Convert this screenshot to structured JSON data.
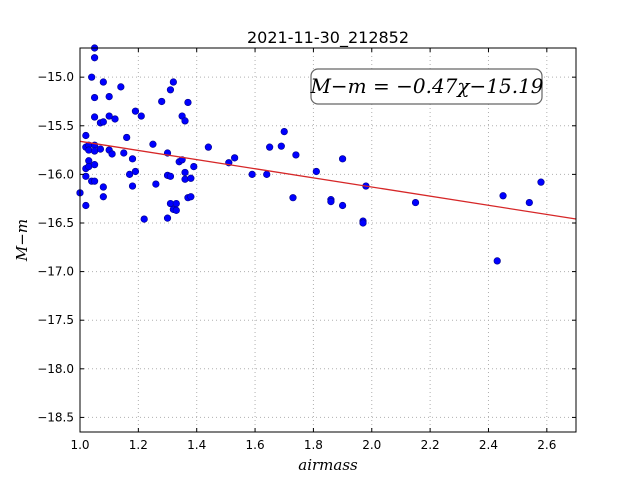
{
  "chart_data": {
    "type": "scatter",
    "title": "2021-11-30_212852",
    "xlabel": "airmass",
    "ylabel": "M−m",
    "xlim": [
      1.0,
      2.7
    ],
    "ylim": [
      -14.7,
      -18.65
    ],
    "y_inverted": true,
    "x_ticks": [
      1.0,
      1.2,
      1.4,
      1.6,
      1.8,
      2.0,
      2.2,
      2.4,
      2.6
    ],
    "x_tick_labels": [
      "1.0",
      "1.2",
      "1.4",
      "1.6",
      "1.8",
      "2.0",
      "2.2",
      "2.4",
      "2.6"
    ],
    "y_ticks": [
      -15.0,
      -15.5,
      -16.0,
      -16.5,
      -17.0,
      -17.5,
      -18.0,
      -18.5
    ],
    "y_tick_labels": [
      "−15.0",
      "−15.5",
      "−16.0",
      "−16.5",
      "−17.0",
      "−17.5",
      "−18.0",
      "−18.5"
    ],
    "grid": true,
    "annotation": "M−m = −0.47χ−15.19",
    "fit_line": {
      "slope": -0.47,
      "intercept": -15.19,
      "color": "#d62728"
    },
    "point_color": "#0000ff",
    "points": [
      [
        1.0,
        -16.19
      ],
      [
        1.02,
        -16.32
      ],
      [
        1.02,
        -15.6
      ],
      [
        1.02,
        -15.72
      ],
      [
        1.02,
        -15.94
      ],
      [
        1.02,
        -16.02
      ],
      [
        1.03,
        -15.7
      ],
      [
        1.03,
        -15.75
      ],
      [
        1.03,
        -15.86
      ],
      [
        1.03,
        -15.92
      ],
      [
        1.04,
        -16.07
      ],
      [
        1.04,
        -15.0
      ],
      [
        1.05,
        -15.21
      ],
      [
        1.05,
        -15.41
      ],
      [
        1.05,
        -15.7
      ],
      [
        1.05,
        -15.76
      ],
      [
        1.05,
        -16.07
      ],
      [
        1.05,
        -14.8
      ],
      [
        1.05,
        -14.7
      ],
      [
        1.05,
        -15.9
      ],
      [
        1.07,
        -15.74
      ],
      [
        1.07,
        -15.47
      ],
      [
        1.08,
        -15.05
      ],
      [
        1.08,
        -15.46
      ],
      [
        1.08,
        -16.23
      ],
      [
        1.08,
        -16.13
      ],
      [
        1.1,
        -15.2
      ],
      [
        1.1,
        -15.4
      ],
      [
        1.1,
        -15.75
      ],
      [
        1.11,
        -15.79
      ],
      [
        1.12,
        -15.43
      ],
      [
        1.14,
        -15.1
      ],
      [
        1.15,
        -15.78
      ],
      [
        1.16,
        -15.62
      ],
      [
        1.17,
        -16.0
      ],
      [
        1.18,
        -15.84
      ],
      [
        1.18,
        -16.12
      ],
      [
        1.19,
        -15.35
      ],
      [
        1.19,
        -15.97
      ],
      [
        1.21,
        -15.4
      ],
      [
        1.22,
        -16.46
      ],
      [
        1.25,
        -15.69
      ],
      [
        1.26,
        -16.1
      ],
      [
        1.28,
        -15.25
      ],
      [
        1.3,
        -15.78
      ],
      [
        1.3,
        -16.01
      ],
      [
        1.3,
        -16.45
      ],
      [
        1.31,
        -16.3
      ],
      [
        1.31,
        -16.02
      ],
      [
        1.31,
        -15.13
      ],
      [
        1.32,
        -15.05
      ],
      [
        1.32,
        -16.36
      ],
      [
        1.33,
        -16.37
      ],
      [
        1.33,
        -16.3
      ],
      [
        1.34,
        -15.87
      ],
      [
        1.35,
        -15.85
      ],
      [
        1.35,
        -15.4
      ],
      [
        1.36,
        -15.45
      ],
      [
        1.36,
        -15.98
      ],
      [
        1.36,
        -16.05
      ],
      [
        1.37,
        -16.24
      ],
      [
        1.37,
        -15.26
      ],
      [
        1.38,
        -16.04
      ],
      [
        1.38,
        -16.23
      ],
      [
        1.39,
        -15.92
      ],
      [
        1.44,
        -15.72
      ],
      [
        1.51,
        -15.88
      ],
      [
        1.53,
        -15.83
      ],
      [
        1.59,
        -16.0
      ],
      [
        1.64,
        -16.0
      ],
      [
        1.65,
        -15.72
      ],
      [
        1.69,
        -15.71
      ],
      [
        1.7,
        -15.56
      ],
      [
        1.73,
        -16.24
      ],
      [
        1.74,
        -15.8
      ],
      [
        1.81,
        -15.97
      ],
      [
        1.86,
        -16.26
      ],
      [
        1.86,
        -16.28
      ],
      [
        1.9,
        -16.32
      ],
      [
        1.9,
        -15.84
      ],
      [
        1.97,
        -16.48
      ],
      [
        1.97,
        -16.5
      ],
      [
        1.98,
        -16.12
      ],
      [
        2.15,
        -16.29
      ],
      [
        2.43,
        -16.89
      ],
      [
        2.45,
        -16.22
      ],
      [
        2.54,
        -16.29
      ],
      [
        2.58,
        -16.08
      ]
    ]
  }
}
